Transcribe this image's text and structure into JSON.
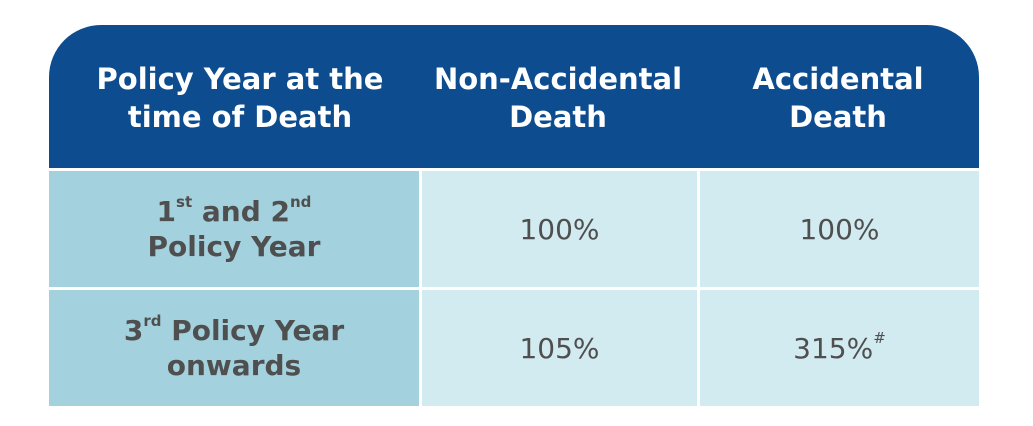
{
  "table": {
    "header": {
      "col1_line1": "Policy Year at the",
      "col1_line2": "time of Death",
      "col2_line1": "Non-Accidental",
      "col2_line2": "Death",
      "col3_line1": "Accidental",
      "col3_line2": "Death"
    },
    "rows": [
      {
        "policy_year_part1": "1",
        "policy_year_sup1": "st",
        "policy_year_part2": " and 2",
        "policy_year_sup2": "nd",
        "policy_year_line2": "Policy Year",
        "non_accidental": "100%",
        "accidental": "100%"
      },
      {
        "policy_year_part1": "3",
        "policy_year_sup1": "rd",
        "policy_year_part2": " Policy Year",
        "policy_year_line2": "onwards",
        "non_accidental": "105%",
        "accidental": "315%",
        "accidental_note": "#"
      }
    ],
    "colors": {
      "header_bg": "#0d4d8f",
      "first_col_bg": "#a3d1de",
      "cell_bg": "#d2ebf1",
      "text": "#4f4f4f"
    }
  }
}
